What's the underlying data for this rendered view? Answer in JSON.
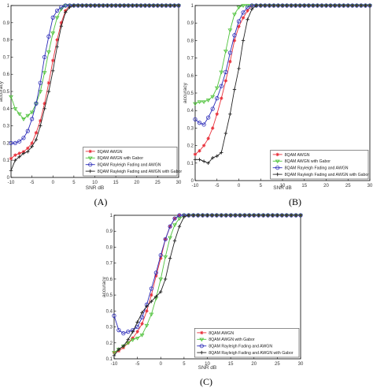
{
  "chart_data": [
    {
      "type": "line",
      "panel_label": "(A)",
      "xlabel": "SNR dB",
      "ylabel": "accuracy",
      "xlim": [
        -10,
        30
      ],
      "ylim": [
        0,
        1
      ],
      "xticks": [
        "-10",
        "-5",
        "0",
        "5",
        "10",
        "15",
        "20",
        "25",
        "30"
      ],
      "yticks": [
        "0",
        "0.1",
        "0.2",
        "0.3",
        "0.4",
        "0.5",
        "0.6",
        "0.7",
        "0.8",
        "0.9",
        "1"
      ],
      "grid": false,
      "legend_position": "bottom-right",
      "x": [
        -10,
        -9,
        -8,
        -7,
        -6,
        -5,
        -4,
        -3,
        -2,
        -1,
        0,
        1,
        2,
        3,
        4,
        5,
        6,
        7,
        8,
        9,
        10,
        11,
        12,
        13,
        14,
        15,
        16,
        17,
        18,
        19,
        20,
        21,
        22,
        23,
        24,
        25,
        26,
        27,
        28,
        29,
        30
      ],
      "series": [
        {
          "name": "8QAM AWGN",
          "color": "#e8303a",
          "marker": "star",
          "values": [
            0.11,
            0.13,
            0.14,
            0.15,
            0.17,
            0.2,
            0.26,
            0.33,
            0.43,
            0.55,
            0.68,
            0.8,
            0.9,
            0.97,
            1,
            1,
            1,
            1,
            1,
            1,
            1,
            1,
            1,
            1,
            1,
            1,
            1,
            1,
            1,
            1,
            1,
            1,
            1,
            1,
            1,
            1,
            1,
            1,
            1,
            1,
            1
          ]
        },
        {
          "name": "8QAM AWGN with Gabor",
          "color": "#4ec23a",
          "marker": "triangle",
          "values": [
            0.47,
            0.4,
            0.37,
            0.34,
            0.36,
            0.38,
            0.43,
            0.5,
            0.61,
            0.73,
            0.84,
            0.93,
            0.98,
            1,
            1,
            1,
            1,
            1,
            1,
            1,
            1,
            1,
            1,
            1,
            1,
            1,
            1,
            1,
            1,
            1,
            1,
            1,
            1,
            1,
            1,
            1,
            1,
            1,
            1,
            1,
            1
          ]
        },
        {
          "name": "8QAM Rayleigh Fading and AWGN",
          "color": "#2a2ab8",
          "marker": "circle",
          "values": [
            0.2,
            0.2,
            0.21,
            0.23,
            0.27,
            0.34,
            0.43,
            0.55,
            0.7,
            0.82,
            0.93,
            0.97,
            0.99,
            1,
            1,
            1,
            1,
            1,
            1,
            1,
            1,
            1,
            1,
            1,
            1,
            1,
            1,
            1,
            1,
            1,
            1,
            1,
            1,
            1,
            1,
            1,
            1,
            1,
            1,
            1,
            1
          ]
        },
        {
          "name": "8QAM Rayleigh Fading and AWGN with Gabor",
          "color": "#222222",
          "marker": "plus",
          "values": [
            0.04,
            0.1,
            0.12,
            0.14,
            0.15,
            0.18,
            0.22,
            0.3,
            0.4,
            0.5,
            0.62,
            0.76,
            0.88,
            0.96,
            0.99,
            1,
            1,
            1,
            1,
            1,
            1,
            1,
            1,
            1,
            1,
            1,
            1,
            1,
            1,
            1,
            1,
            1,
            1,
            1,
            1,
            1,
            1,
            1,
            1,
            1,
            1
          ]
        }
      ]
    },
    {
      "type": "line",
      "panel_label": "(B)",
      "xlabel": "SNR dB",
      "ylabel": "accuracy",
      "xlim": [
        -10,
        30
      ],
      "ylim": [
        0,
        1
      ],
      "xticks": [
        "-10",
        "-5",
        "0",
        "5",
        "10",
        "15",
        "20",
        "25",
        "30"
      ],
      "yticks": [
        "0",
        "0.1",
        "0.2",
        "0.3",
        "0.4",
        "0.5",
        "0.6",
        "0.7",
        "0.8",
        "0.9",
        "1"
      ],
      "grid": false,
      "legend_position": "bottom-right",
      "x": [
        -10,
        -9,
        -8,
        -7,
        -6,
        -5,
        -4,
        -3,
        -2,
        -1,
        0,
        1,
        2,
        3,
        4,
        5,
        6,
        7,
        8,
        9,
        10,
        11,
        12,
        13,
        14,
        15,
        16,
        17,
        18,
        19,
        20,
        21,
        22,
        23,
        24,
        25,
        26,
        27,
        28,
        29,
        30
      ],
      "series": [
        {
          "name": "8QAM AWGN",
          "color": "#e8303a",
          "marker": "star",
          "values": [
            0.15,
            0.17,
            0.2,
            0.24,
            0.3,
            0.38,
            0.47,
            0.57,
            0.68,
            0.8,
            0.88,
            0.93,
            0.97,
            1,
            1,
            1,
            1,
            1,
            1,
            1,
            1,
            1,
            1,
            1,
            1,
            1,
            1,
            1,
            1,
            1,
            1,
            1,
            1,
            1,
            1,
            1,
            1,
            1,
            1,
            1,
            1
          ]
        },
        {
          "name": "8QAM AWGN with Gabor",
          "color": "#4ec23a",
          "marker": "triangle",
          "values": [
            0.44,
            0.45,
            0.45,
            0.46,
            0.48,
            0.53,
            0.62,
            0.74,
            0.86,
            0.95,
            0.99,
            1,
            1,
            1,
            1,
            1,
            1,
            1,
            1,
            1,
            1,
            1,
            1,
            1,
            1,
            1,
            1,
            1,
            1,
            1,
            1,
            1,
            1,
            1,
            1,
            1,
            1,
            1,
            1,
            1,
            1
          ]
        },
        {
          "name": "8QAM Rayleigh Fading and AWGN",
          "color": "#2a2ab8",
          "marker": "circle",
          "values": [
            0.35,
            0.33,
            0.32,
            0.36,
            0.41,
            0.47,
            0.54,
            0.62,
            0.73,
            0.83,
            0.91,
            0.96,
            0.99,
            1,
            1,
            1,
            1,
            1,
            1,
            1,
            1,
            1,
            1,
            1,
            1,
            1,
            1,
            1,
            1,
            1,
            1,
            1,
            1,
            1,
            1,
            1,
            1,
            1,
            1,
            1,
            1
          ]
        },
        {
          "name": "8QAM Rayleigh Fading and AWGN with Gabor",
          "color": "#222222",
          "marker": "plus",
          "values": [
            0.12,
            0.12,
            0.11,
            0.1,
            0.13,
            0.14,
            0.16,
            0.27,
            0.38,
            0.52,
            0.64,
            0.8,
            0.92,
            0.98,
            1,
            1,
            1,
            1,
            1,
            1,
            1,
            1,
            1,
            1,
            1,
            1,
            1,
            1,
            1,
            1,
            1,
            1,
            1,
            1,
            1,
            1,
            1,
            1,
            1,
            1,
            1
          ]
        }
      ]
    },
    {
      "type": "line",
      "panel_label": "(C)",
      "xlabel": "SNR dB",
      "ylabel": "accuracy",
      "xlim": [
        -10,
        30
      ],
      "ylim": [
        0.1,
        1
      ],
      "xticks": [
        "-10",
        "-5",
        "0",
        "5",
        "10",
        "15",
        "20",
        "25",
        "30"
      ],
      "yticks": [
        "0.1",
        "0.2",
        "0.3",
        "0.4",
        "0.5",
        "0.6",
        "0.7",
        "0.8",
        "0.9",
        "1"
      ],
      "grid": false,
      "legend_position": "bottom-right",
      "x": [
        -10,
        -9,
        -8,
        -7,
        -6,
        -5,
        -4,
        -3,
        -2,
        -1,
        0,
        1,
        2,
        3,
        4,
        5,
        6,
        7,
        8,
        9,
        10,
        11,
        12,
        13,
        14,
        15,
        16,
        17,
        18,
        19,
        20,
        21,
        22,
        23,
        24,
        25,
        26,
        27,
        28,
        29,
        30
      ],
      "series": [
        {
          "name": "8QAM AWGN",
          "color": "#e8303a",
          "marker": "star",
          "values": [
            0.14,
            0.15,
            0.17,
            0.2,
            0.23,
            0.27,
            0.32,
            0.4,
            0.5,
            0.62,
            0.73,
            0.85,
            0.93,
            0.98,
            1,
            1,
            1,
            1,
            1,
            1,
            1,
            1,
            1,
            1,
            1,
            1,
            1,
            1,
            1,
            1,
            1,
            1,
            1,
            1,
            1,
            1,
            1,
            1,
            1,
            1,
            1
          ]
        },
        {
          "name": "8QAM AWGN with Gabor",
          "color": "#4ec23a",
          "marker": "triangle",
          "values": [
            0.14,
            0.16,
            0.18,
            0.2,
            0.22,
            0.23,
            0.25,
            0.31,
            0.38,
            0.48,
            0.6,
            0.74,
            0.86,
            0.94,
            0.98,
            1,
            1,
            1,
            1,
            1,
            1,
            1,
            1,
            1,
            1,
            1,
            1,
            1,
            1,
            1,
            1,
            1,
            1,
            1,
            1,
            1,
            1,
            1,
            1,
            1,
            1
          ]
        },
        {
          "name": "8QAM Rayleigh Fading and AWGN",
          "color": "#2a2ab8",
          "marker": "circle",
          "values": [
            0.37,
            0.28,
            0.26,
            0.27,
            0.28,
            0.3,
            0.36,
            0.44,
            0.54,
            0.64,
            0.75,
            0.85,
            0.93,
            0.98,
            1,
            1,
            1,
            1,
            1,
            1,
            1,
            1,
            1,
            1,
            1,
            1,
            1,
            1,
            1,
            1,
            1,
            1,
            1,
            1,
            1,
            1,
            1,
            1,
            1,
            1,
            1
          ]
        },
        {
          "name": "8QAM Rayleigh Fading and AWGN with Gabor",
          "color": "#222222",
          "marker": "plus",
          "values": [
            0.12,
            0.16,
            0.18,
            0.22,
            0.27,
            0.33,
            0.39,
            0.43,
            0.46,
            0.49,
            0.52,
            0.6,
            0.73,
            0.84,
            0.93,
            0.99,
            1,
            1,
            1,
            1,
            1,
            1,
            1,
            1,
            1,
            1,
            1,
            1,
            1,
            1,
            1,
            1,
            1,
            1,
            1,
            1,
            1,
            1,
            1,
            1,
            1
          ]
        }
      ]
    }
  ]
}
